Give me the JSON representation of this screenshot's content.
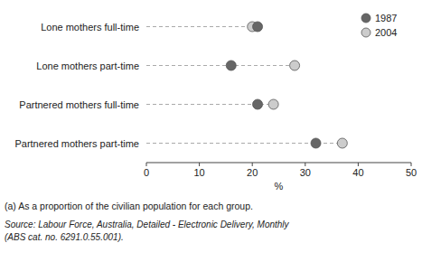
{
  "chart_data": {
    "type": "dot",
    "orientation": "horizontal",
    "categories": [
      "Lone mothers full-time",
      "Lone mothers part-time",
      "Partnered mothers full-time",
      "Partnered mothers part-time"
    ],
    "series": [
      {
        "name": "1987",
        "color": "#666666",
        "values": [
          21,
          16,
          21,
          32
        ]
      },
      {
        "name": "2004",
        "color": "#cccccc",
        "values": [
          20,
          28,
          24,
          37
        ]
      }
    ],
    "xlim": [
      0,
      50
    ],
    "xticks": [
      0,
      10,
      20,
      30,
      40,
      50
    ],
    "xlabel": "%",
    "legend": "upper right",
    "grid": false,
    "annotations": [
      "(a) As a proportion of the civilian population for each group.",
      "Source: Labour Force, Australia, Detailed - Electronic Delivery, Monthly",
      "(ABS cat. no. 6291.0.55.001)."
    ]
  }
}
